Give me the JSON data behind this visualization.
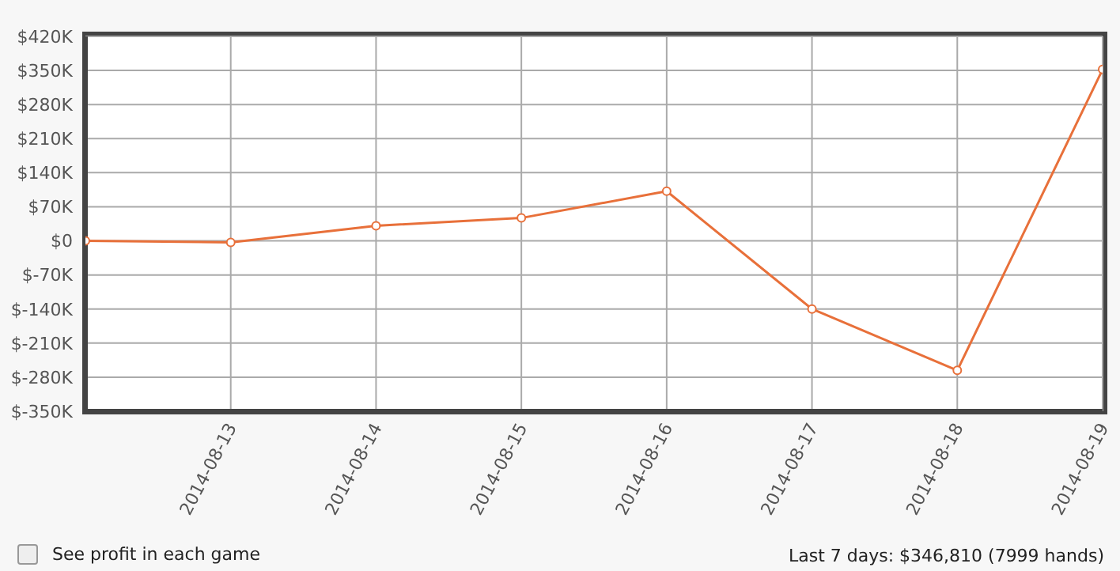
{
  "chart_data": {
    "type": "line",
    "x": [
      "2014-08-12",
      "2014-08-13",
      "2014-08-14",
      "2014-08-15",
      "2014-08-16",
      "2014-08-17",
      "2014-08-18",
      "2014-08-19"
    ],
    "series": [
      {
        "color": "#e8703a",
        "values": [
          0,
          -3000,
          31000,
          47000,
          102000,
          -140000,
          -266000,
          352000
        ]
      }
    ],
    "xlim": [
      "2014-08-12",
      "2014-08-19"
    ],
    "xticks": [
      {
        "value": "2014-08-13",
        "label": "2014-08-13"
      },
      {
        "value": "2014-08-14",
        "label": "2014-08-14"
      },
      {
        "value": "2014-08-15",
        "label": "2014-08-15"
      },
      {
        "value": "2014-08-16",
        "label": "2014-08-16"
      },
      {
        "value": "2014-08-17",
        "label": "2014-08-17"
      },
      {
        "value": "2014-08-18",
        "label": "2014-08-18"
      },
      {
        "value": "2014-08-19",
        "label": "2014-08-19"
      }
    ],
    "ylim": [
      -350000,
      420000
    ],
    "yticks": [
      {
        "value": -350000,
        "label": "$-350K"
      },
      {
        "value": -280000,
        "label": "$-280K"
      },
      {
        "value": -210000,
        "label": "$-210K"
      },
      {
        "value": -140000,
        "label": "$-140K"
      },
      {
        "value": -70000,
        "label": "$-70K"
      },
      {
        "value": 0,
        "label": "$0"
      },
      {
        "value": 70000,
        "label": "$70K"
      },
      {
        "value": 140000,
        "label": "$140K"
      },
      {
        "value": 210000,
        "label": "$210K"
      },
      {
        "value": 280000,
        "label": "$280K"
      },
      {
        "value": 350000,
        "label": "$350K"
      },
      {
        "value": 420000,
        "label": "$420K"
      }
    ],
    "grid": true,
    "marker": "circle",
    "line_style": "solid",
    "annotations": [
      "See profit in each game",
      "Last 7 days: $346,810 (7999 hands)"
    ]
  }
}
